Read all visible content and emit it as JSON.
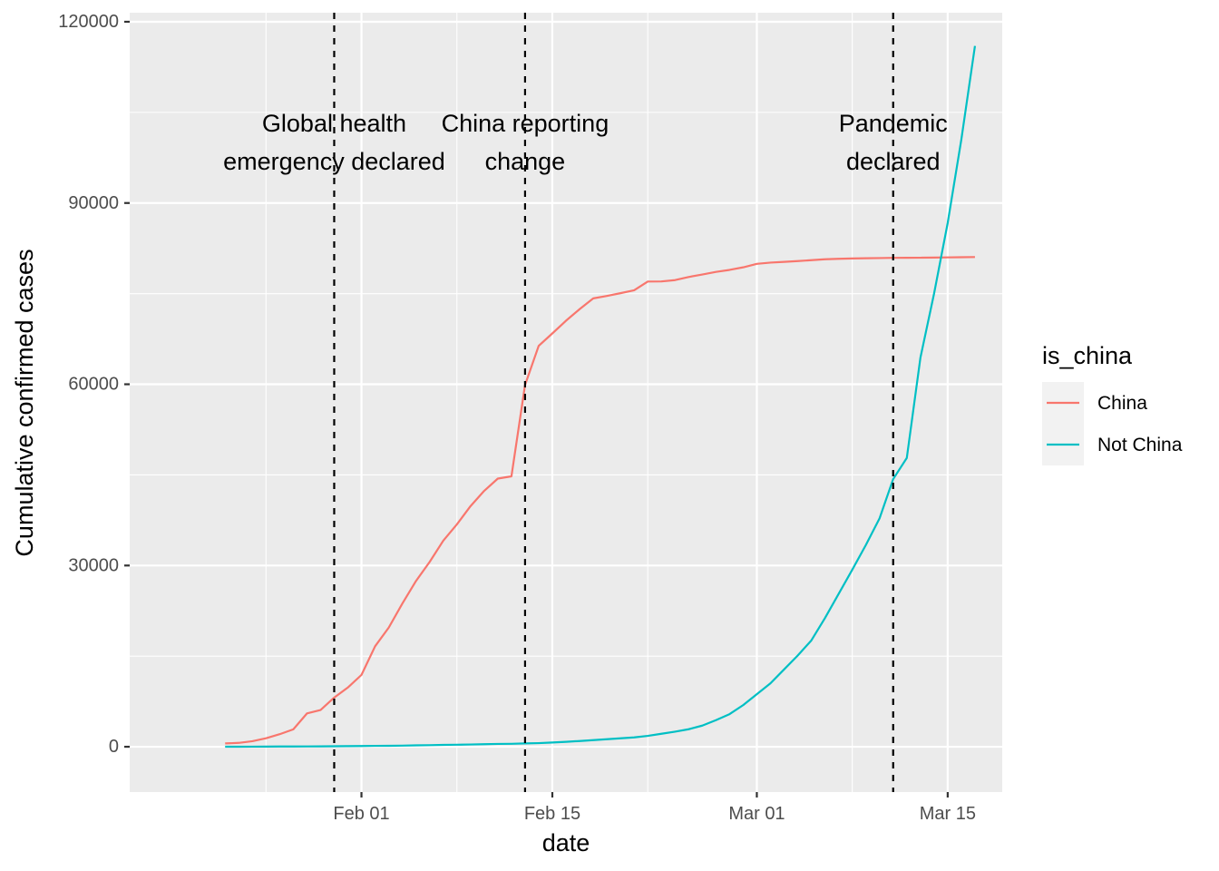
{
  "chart_data": {
    "type": "line",
    "xlabel": "date",
    "ylabel": "Cumulative confirmed cases",
    "xlim": [
      "2020-01-15",
      "2020-03-19"
    ],
    "ylim": [
      -7500,
      121500
    ],
    "x_ticks": [
      {
        "date": "2020-02-01",
        "label": "Feb 01"
      },
      {
        "date": "2020-02-15",
        "label": "Feb 15"
      },
      {
        "date": "2020-03-01",
        "label": "Mar 01"
      },
      {
        "date": "2020-03-15",
        "label": "Mar 15"
      }
    ],
    "x_minor_ticks": [
      "2020-01-25",
      "2020-02-08",
      "2020-02-22",
      "2020-03-08"
    ],
    "y_ticks": [
      0,
      30000,
      60000,
      90000,
      120000
    ],
    "y_minor_ticks": [
      15000,
      45000,
      75000,
      105000
    ],
    "grid": true,
    "background": "#ebebeb",
    "legend": {
      "title": "is_china",
      "position": "right",
      "entries": [
        {
          "label": "China",
          "color": "#F8766D"
        },
        {
          "label": "Not China",
          "color": "#00BFC4"
        }
      ]
    },
    "vlines": [
      {
        "date": "2020-01-30",
        "lines": [
          "Global health",
          "emergency declared"
        ]
      },
      {
        "date": "2020-02-13",
        "lines": [
          "China reporting",
          "change"
        ]
      },
      {
        "date": "2020-03-11",
        "lines": [
          "Pandemic",
          "declared"
        ]
      }
    ],
    "annotation_y": 100000,
    "series": [
      {
        "name": "China",
        "color": "#F8766D",
        "x": [
          "2020-01-22",
          "2020-01-23",
          "2020-01-24",
          "2020-01-25",
          "2020-01-26",
          "2020-01-27",
          "2020-01-28",
          "2020-01-29",
          "2020-01-30",
          "2020-01-31",
          "2020-02-01",
          "2020-02-02",
          "2020-02-03",
          "2020-02-04",
          "2020-02-05",
          "2020-02-06",
          "2020-02-07",
          "2020-02-08",
          "2020-02-09",
          "2020-02-10",
          "2020-02-11",
          "2020-02-12",
          "2020-02-13",
          "2020-02-14",
          "2020-02-15",
          "2020-02-16",
          "2020-02-17",
          "2020-02-18",
          "2020-02-19",
          "2020-02-20",
          "2020-02-21",
          "2020-02-22",
          "2020-02-23",
          "2020-02-24",
          "2020-02-25",
          "2020-02-26",
          "2020-02-27",
          "2020-02-28",
          "2020-02-29",
          "2020-03-01",
          "2020-03-02",
          "2020-03-03",
          "2020-03-04",
          "2020-03-05",
          "2020-03-06",
          "2020-03-07",
          "2020-03-08",
          "2020-03-09",
          "2020-03-10",
          "2020-03-11",
          "2020-03-12",
          "2020-03-13",
          "2020-03-14",
          "2020-03-15",
          "2020-03-16",
          "2020-03-17"
        ],
        "values": [
          548,
          643,
          920,
          1406,
          2075,
          2877,
          5509,
          6087,
          8141,
          9802,
          11891,
          16630,
          19716,
          23707,
          27440,
          30587,
          34110,
          36814,
          39829,
          42354,
          44386,
          44759,
          59895,
          66358,
          68413,
          70513,
          72434,
          74211,
          74619,
          75077,
          75550,
          77001,
          77022,
          77241,
          77754,
          78166,
          78600,
          78928,
          79356,
          79932,
          80136,
          80261,
          80386,
          80537,
          80690,
          80770,
          80823,
          80860,
          80887,
          80921,
          80932,
          80945,
          80977,
          81003,
          81033,
          81058
        ]
      },
      {
        "name": "Not China",
        "color": "#00BFC4",
        "x": [
          "2020-01-22",
          "2020-01-23",
          "2020-01-24",
          "2020-01-25",
          "2020-01-26",
          "2020-01-27",
          "2020-01-28",
          "2020-01-29",
          "2020-01-30",
          "2020-01-31",
          "2020-02-01",
          "2020-02-02",
          "2020-02-03",
          "2020-02-04",
          "2020-02-05",
          "2020-02-06",
          "2020-02-07",
          "2020-02-08",
          "2020-02-09",
          "2020-02-10",
          "2020-02-11",
          "2020-02-12",
          "2020-02-13",
          "2020-02-14",
          "2020-02-15",
          "2020-02-16",
          "2020-02-17",
          "2020-02-18",
          "2020-02-19",
          "2020-02-20",
          "2020-02-21",
          "2020-02-22",
          "2020-02-23",
          "2020-02-24",
          "2020-02-25",
          "2020-02-26",
          "2020-02-27",
          "2020-02-28",
          "2020-02-29",
          "2020-03-01",
          "2020-03-02",
          "2020-03-03",
          "2020-03-04",
          "2020-03-05",
          "2020-03-06",
          "2020-03-07",
          "2020-03-08",
          "2020-03-09",
          "2020-03-10",
          "2020-03-11",
          "2020-03-12",
          "2020-03-13",
          "2020-03-14",
          "2020-03-15",
          "2020-03-16",
          "2020-03-17"
        ],
        "values": [
          7,
          11,
          21,
          28,
          43,
          50,
          57,
          70,
          83,
          105,
          124,
          153,
          164,
          191,
          232,
          264,
          307,
          334,
          374,
          420,
          470,
          490,
          550,
          600,
          700,
          820,
          950,
          1100,
          1250,
          1400,
          1550,
          1800,
          2150,
          2500,
          2900,
          3500,
          4400,
          5400,
          6900,
          8700,
          10500,
          12800,
          15100,
          17600,
          21300,
          25300,
          29300,
          33400,
          37800,
          44300,
          47800,
          64400,
          75000,
          86700,
          100500,
          116000
        ]
      }
    ]
  }
}
